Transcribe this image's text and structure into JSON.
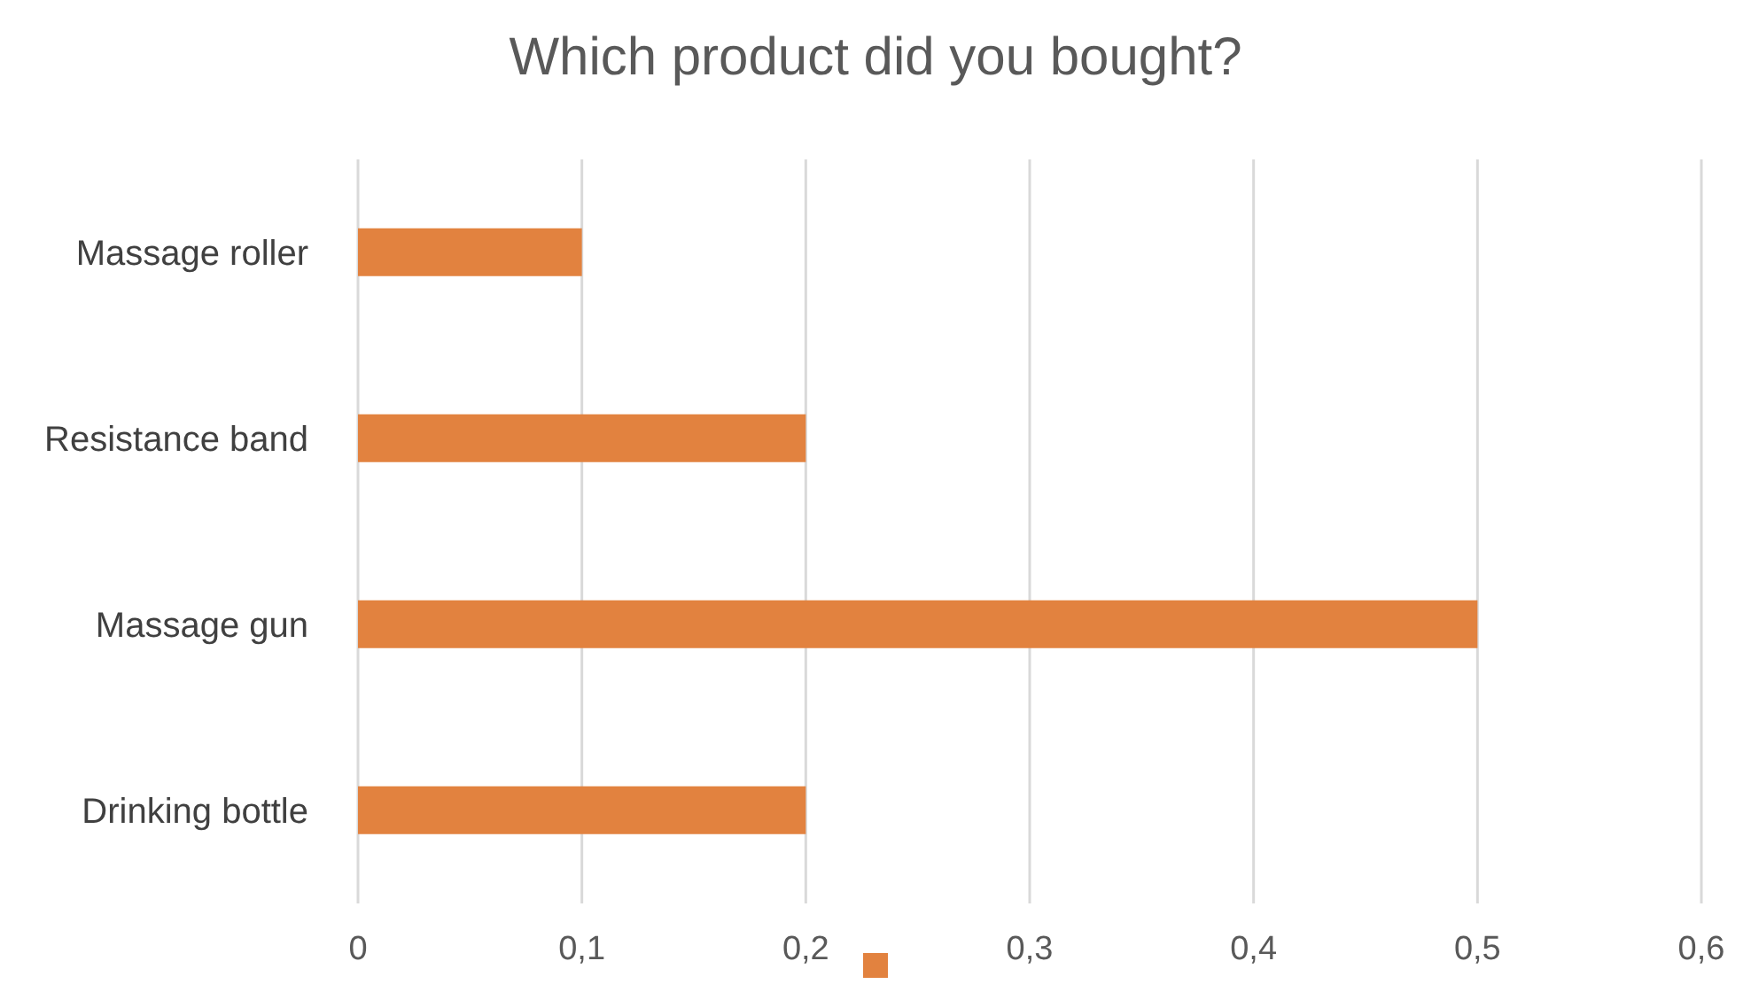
{
  "chart_data": {
    "type": "bar",
    "orientation": "horizontal",
    "title": "Which product did you bought?",
    "categories": [
      "Massage roller",
      "Resistance band",
      "Massage gun",
      "Drinking bottle"
    ],
    "values": [
      0.1,
      0.2,
      0.5,
      0.2
    ],
    "color": "#e2823f",
    "xlim": [
      0,
      0.6
    ],
    "xticks": [
      0,
      {
        "value": 0.1,
        "label": "0,1"
      },
      {
        "value": 0.2,
        "label": "0,2"
      },
      {
        "value": 0.3,
        "label": "0,3"
      },
      {
        "value": 0.4,
        "label": "0,4"
      },
      {
        "value": 0.5,
        "label": "0,5"
      },
      {
        "value": 0.6,
        "label": "0,6"
      }
    ],
    "grid": "x"
  }
}
